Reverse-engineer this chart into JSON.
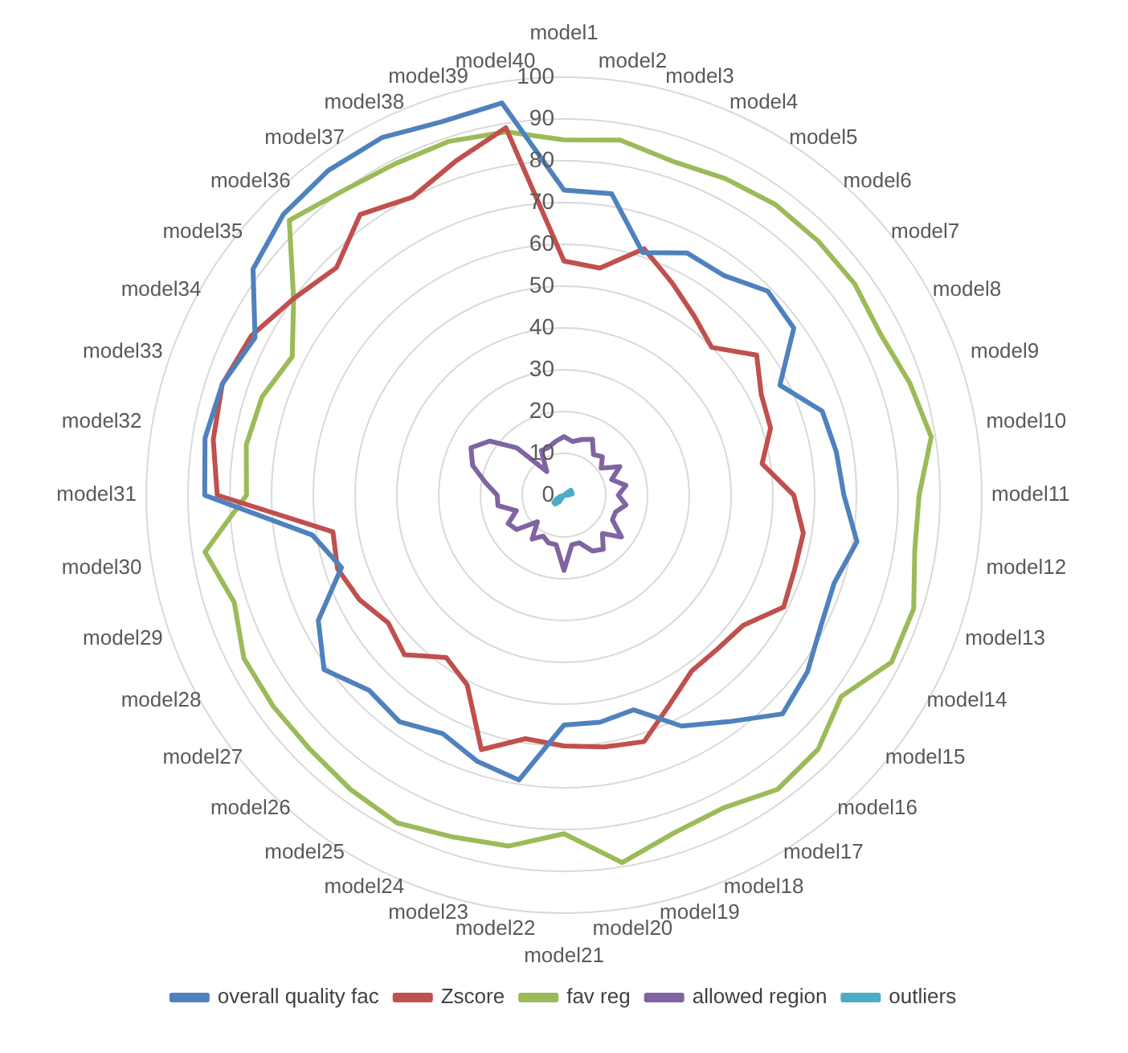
{
  "chart_data": {
    "type": "radar",
    "categories": [
      "model1",
      "model2",
      "model3",
      "model4",
      "model5",
      "model6",
      "model7",
      "model8",
      "model9",
      "model10",
      "model11",
      "model12",
      "model13",
      "model14",
      "model15",
      "model16",
      "model17",
      "model18",
      "model19",
      "model20",
      "model21",
      "model22",
      "model23",
      "model24",
      "model25",
      "model26",
      "model27",
      "model28",
      "model29",
      "model30",
      "model31",
      "model32",
      "model33",
      "model34",
      "model35",
      "model36",
      "model37",
      "model38",
      "model39",
      "model40"
    ],
    "series": [
      {
        "name": "overall quality fac",
        "color": "#4f81bd",
        "values": [
          73,
          73,
          61,
          65,
          65,
          69,
          68,
          58,
          65,
          66,
          67,
          71,
          68,
          69,
          72,
          74,
          67,
          62,
          54,
          55,
          55,
          69,
          67,
          64,
          67,
          66,
          71,
          66,
          56,
          61,
          86,
          87,
          86,
          83,
          92,
          95,
          96,
          96,
          94,
          95
        ]
      },
      {
        "name": "Zscore",
        "color": "#c0504d",
        "values": [
          56,
          55,
          62,
          57,
          53,
          50,
          57,
          53,
          52,
          48,
          55,
          58,
          58,
          59,
          53,
          52,
          52,
          56,
          62,
          61,
          60,
          59,
          64,
          51,
          48,
          54,
          52,
          55,
          57,
          56,
          83,
          85,
          86,
          84,
          80,
          77,
          83,
          80,
          84,
          89
        ]
      },
      {
        "name": "fav reg",
        "color": "#9bbb59",
        "values": [
          85,
          86,
          84,
          85,
          86,
          86,
          86,
          85,
          87,
          89,
          85,
          85,
          88,
          88,
          82,
          86,
          87,
          84,
          85,
          89,
          81,
          85,
          86,
          88,
          87,
          86,
          86,
          86,
          83,
          87,
          76,
          77,
          76,
          73,
          80,
          93,
          90,
          89,
          89,
          88
        ]
      },
      {
        "name": "allowed region",
        "color": "#8064a2",
        "values": [
          14,
          13,
          14,
          15,
          12,
          13,
          11,
          15,
          12,
          15,
          13,
          15,
          13,
          13,
          17,
          13,
          16,
          15,
          12,
          12,
          18,
          12,
          12,
          11,
          13,
          9,
          14,
          15,
          12,
          16,
          16,
          19,
          23,
          25,
          22,
          16,
          7,
          12,
          12,
          13
        ]
      },
      {
        "name": "outliers",
        "color": "#4bacc6",
        "values": [
          0,
          0,
          0,
          0,
          0,
          0,
          2,
          2,
          2,
          2,
          1,
          0,
          0,
          0,
          0,
          0,
          0,
          0,
          0,
          0,
          0,
          0,
          0,
          0,
          2,
          3,
          3,
          2,
          1,
          0,
          0,
          0,
          0,
          0,
          0,
          0,
          0,
          0,
          0,
          0
        ]
      }
    ],
    "ylim": [
      0,
      100
    ],
    "yticks": [
      0,
      10,
      20,
      30,
      40,
      50,
      60,
      70,
      80,
      90,
      100
    ],
    "grid": true,
    "legend": "bottom",
    "marker": "none"
  }
}
